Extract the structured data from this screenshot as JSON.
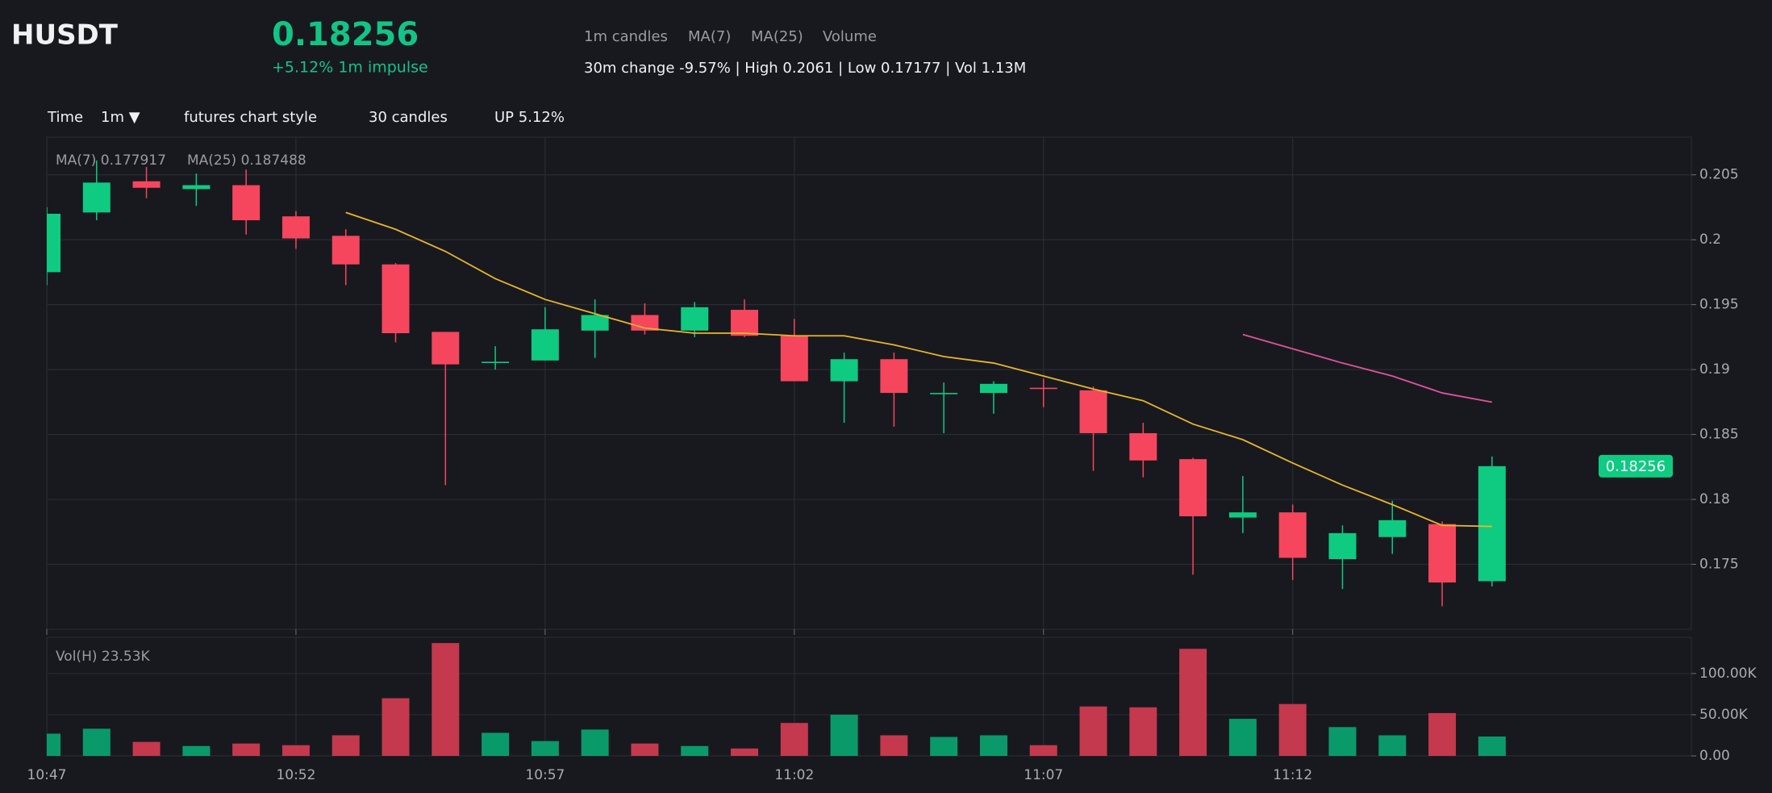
{
  "header": {
    "symbol": "HUSDT",
    "price": "0.18256",
    "impulse": "+5.12% 1m impulse",
    "indicators": [
      "1m candles",
      "MA(7)",
      "MA(25)",
      "Volume"
    ],
    "summary": "30m change -9.57% | High 0.2061 | Low 0.17177 | Vol 1.13M"
  },
  "toolbar": {
    "time_label": "Time",
    "interval": "1m ▼",
    "style": "futures chart style",
    "count": "30 candles",
    "status": "UP 5.12%"
  },
  "chart_data": [
    {
      "type": "candlestick",
      "x": [
        "10:47",
        "10:48",
        "10:49",
        "10:50",
        "10:51",
        "10:52",
        "10:53",
        "10:54",
        "10:55",
        "10:56",
        "10:57",
        "10:58",
        "10:59",
        "11:00",
        "11:01",
        "11:02",
        "11:03",
        "11:04",
        "11:05",
        "11:06",
        "11:07",
        "11:08",
        "11:09",
        "11:10",
        "11:11",
        "11:12",
        "11:13",
        "11:14",
        "11:15",
        "11:16"
      ],
      "open": [
        0.1975,
        0.2021,
        0.2045,
        0.2039,
        0.2042,
        0.2018,
        0.2003,
        0.1981,
        0.1929,
        0.1905,
        0.1907,
        0.193,
        0.1942,
        0.193,
        0.1946,
        0.1926,
        0.1891,
        0.1908,
        0.1881,
        0.1882,
        0.1886,
        0.1884,
        0.1851,
        0.1831,
        0.1786,
        0.179,
        0.1754,
        0.1771,
        0.1781,
        0.1737
      ],
      "high": [
        0.2025,
        0.2061,
        0.2056,
        0.2051,
        0.2054,
        0.2022,
        0.2008,
        0.1982,
        0.1929,
        0.1918,
        0.1948,
        0.1954,
        0.1951,
        0.1952,
        0.1954,
        0.1939,
        0.1913,
        0.1913,
        0.189,
        0.1891,
        0.1893,
        0.1887,
        0.1859,
        0.1832,
        0.1818,
        0.1796,
        0.178,
        0.1799,
        0.1783,
        0.1833
      ],
      "low": [
        0.1965,
        0.2015,
        0.2032,
        0.2026,
        0.2004,
        0.1993,
        0.1965,
        0.1921,
        0.1811,
        0.19,
        0.1907,
        0.1909,
        0.1927,
        0.1925,
        0.1925,
        0.1891,
        0.1859,
        0.1856,
        0.1851,
        0.1866,
        0.1871,
        0.1822,
        0.1817,
        0.1742,
        0.1774,
        0.1738,
        0.1731,
        0.1758,
        0.17177,
        0.1733
      ],
      "close": [
        0.202,
        0.2044,
        0.204,
        0.2042,
        0.2015,
        0.2001,
        0.1981,
        0.1928,
        0.1904,
        0.1906,
        0.1931,
        0.1942,
        0.193,
        0.1948,
        0.1926,
        0.1891,
        0.1908,
        0.1882,
        0.1882,
        0.1889,
        0.1885,
        0.1851,
        0.183,
        0.1787,
        0.179,
        0.1755,
        0.1774,
        0.1784,
        0.1736,
        0.18256
      ],
      "lines": [
        {
          "name": "MA(7)",
          "color": "#e9b52a",
          "values": [
            null,
            null,
            null,
            null,
            null,
            null,
            0.2021,
            0.2008,
            0.1991,
            0.197,
            0.1954,
            0.1943,
            0.1932,
            0.1928,
            0.1928,
            0.1926,
            0.1926,
            0.1919,
            0.191,
            0.1905,
            0.1895,
            0.1885,
            0.1876,
            0.1858,
            0.1846,
            0.1828,
            0.1811,
            0.1796,
            0.178,
            0.177917
          ]
        },
        {
          "name": "MA(25)",
          "color": "#e0529c",
          "values": [
            null,
            null,
            null,
            null,
            null,
            null,
            null,
            null,
            null,
            null,
            null,
            null,
            null,
            null,
            null,
            null,
            null,
            null,
            null,
            null,
            null,
            null,
            null,
            null,
            0.1927,
            0.1916,
            0.1905,
            0.1895,
            0.1882,
            0.187488
          ]
        }
      ],
      "legend_labels": [
        "MA(7) 0.177917",
        "MA(25) 0.187488"
      ],
      "last_label": "0.18256",
      "up_color": "#0ecb81",
      "down_color": "#f6465d",
      "xlim": [
        "10:47",
        "11:20"
      ],
      "xticks": [
        "10:47",
        "10:52",
        "10:57",
        "11:02",
        "11:07",
        "11:12"
      ],
      "ylim": [
        0.17,
        0.2079
      ],
      "yticks": [
        0.175,
        0.18,
        0.185,
        0.19,
        0.195,
        0.2,
        0.205
      ],
      "grid": true
    },
    {
      "type": "bar",
      "values": [
        27000,
        33000,
        17000,
        12000,
        15000,
        13000,
        25000,
        70000,
        137000,
        28000,
        18000,
        32000,
        15000,
        12000,
        9000,
        40000,
        50000,
        25000,
        23000,
        25000,
        13000,
        60000,
        59000,
        130000,
        45000,
        63000,
        35000,
        25000,
        52000,
        23530
      ],
      "legend_label": "Vol(H) 23.53K",
      "up_color": "#0a9a6a",
      "down_color": "#c4394d",
      "ylim": [
        0,
        144000
      ],
      "yticks": [
        {
          "value": 0,
          "label": "0.00"
        },
        {
          "value": 50000,
          "label": "50.00K"
        },
        {
          "value": 100000,
          "label": "100.00K"
        }
      ],
      "grid": true
    }
  ]
}
